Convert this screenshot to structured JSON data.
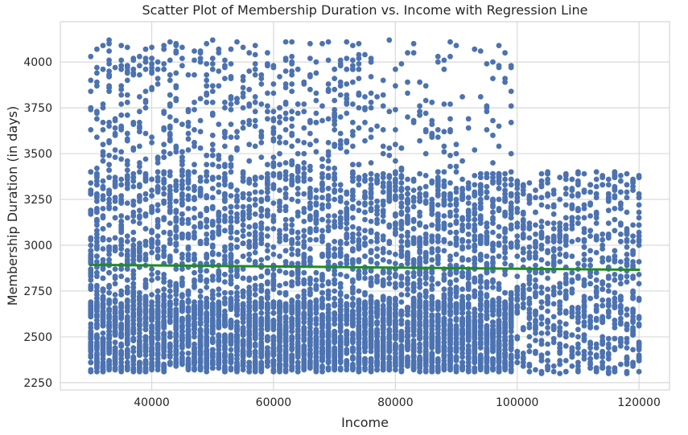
{
  "chart_data": {
    "type": "scatter",
    "title": "Scatter Plot of Membership Duration vs. Income with Regression Line",
    "xlabel": "Income",
    "ylabel": "Membership Duration (in days)",
    "xlim": [
      25000,
      125000
    ],
    "ylim": [
      2210,
      4220
    ],
    "xticks": [
      40000,
      60000,
      80000,
      100000,
      120000
    ],
    "yticks": [
      2250,
      2500,
      2750,
      3000,
      3250,
      3500,
      3750,
      4000
    ],
    "grid": true,
    "colors": {
      "points": "#4c72b0",
      "regression": "#228b22",
      "grid": "#d9d9d9",
      "spine": "#cccccc"
    },
    "series": [
      {
        "kind": "points",
        "income_range": [
          30000,
          120000
        ],
        "income_step": 1000,
        "point_count": 9000,
        "note_regions": [
          {
            "income": [
              30000,
              100000
            ],
            "duration": [
              2310,
              4120
            ],
            "dense_duration": [
              2310,
              3400
            ]
          },
          {
            "income": [
              100000,
              120000
            ],
            "duration": [
              2300,
              3400
            ]
          }
        ]
      },
      {
        "kind": "regression_line",
        "x": [
          30000,
          120000
        ],
        "y": [
          2893,
          2866
        ]
      }
    ]
  }
}
